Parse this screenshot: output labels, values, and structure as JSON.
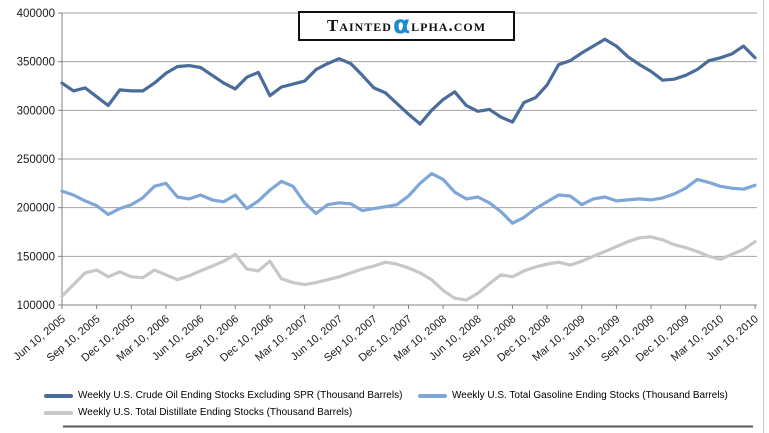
{
  "logo": {
    "prefix": "Tainted",
    "alpha": "α",
    "suffix": "lpha.com",
    "alpha_color": "#1b8cd0"
  },
  "chart_data": {
    "type": "line",
    "title": "",
    "xlabel": "",
    "ylabel": "",
    "ylim": [
      100000,
      400000
    ],
    "grid": "horizontal",
    "legend_position": "bottom",
    "y_ticks": [
      100000,
      150000,
      200000,
      250000,
      300000,
      350000,
      400000
    ],
    "y_tick_labels": [
      "100000",
      "150000",
      "200000",
      "250000",
      "300000",
      "350000",
      "400000"
    ],
    "x_tick_labels": [
      "Jun 10, 2005",
      "Sep 10, 2005",
      "Dec 10, 2005",
      "Mar 10, 2006",
      "Jun 10, 2006",
      "Sep 10, 2006",
      "Dec 10, 2006",
      "Mar 10, 2007",
      "Jun 10, 2007",
      "Sep 10, 2007",
      "Dec 10, 2007",
      "Mar 10, 2008",
      "Jun 10, 2008",
      "Sep 10, 2008",
      "Dec 10, 2008",
      "Mar 10, 2009",
      "Jun 10, 2009",
      "Sep 10, 2009",
      "Dec 10, 2009",
      "Mar 10, 2010",
      "Jun 10, 2010"
    ],
    "series": [
      {
        "key": "crude",
        "name": "Weekly U.S. Crude Oil Ending Stocks Excluding SPR  (Thousand Barrels)",
        "color": "#4a6c9b",
        "values": [
          328000,
          320000,
          323000,
          314000,
          305000,
          321000,
          320000,
          320000,
          328000,
          338000,
          345000,
          346000,
          344000,
          336000,
          328000,
          322000,
          334000,
          339000,
          315000,
          324000,
          327000,
          330000,
          342000,
          348000,
          353000,
          348000,
          336000,
          323000,
          318000,
          307000,
          296000,
          286000,
          300000,
          311000,
          319000,
          305000,
          299000,
          301000,
          293000,
          288000,
          308000,
          313000,
          326000,
          347000,
          351000,
          359000,
          366000,
          373000,
          366000,
          355000,
          347000,
          340000,
          331000,
          332000,
          336000,
          342000,
          351000,
          354000,
          358000,
          366000,
          354000
        ]
      },
      {
        "key": "gasoline",
        "name": "Weekly U.S. Total Gasoline Ending Stocks  (Thousand Barrels)",
        "color": "#7ea6d8",
        "values": [
          217000,
          213000,
          207000,
          202000,
          193000,
          199000,
          203000,
          210000,
          222000,
          225000,
          211000,
          209000,
          213000,
          208000,
          206000,
          213000,
          199000,
          207000,
          218000,
          227000,
          222000,
          205000,
          194000,
          203000,
          205000,
          204000,
          197000,
          199000,
          201000,
          203000,
          212000,
          225000,
          235000,
          229000,
          216000,
          209000,
          211000,
          205000,
          196000,
          184000,
          190000,
          199000,
          206000,
          213000,
          212000,
          203000,
          209000,
          211000,
          207000,
          208000,
          209000,
          208000,
          210000,
          214000,
          220000,
          229000,
          226000,
          222000,
          220000,
          219000,
          223000
        ]
      },
      {
        "key": "distillate",
        "name": "Weekly U.S. Total Distillate Ending Stocks  (Thousand Barrels)",
        "color": "#c7c7c7",
        "values": [
          109000,
          121000,
          133000,
          136000,
          129000,
          134000,
          129000,
          128000,
          136000,
          131000,
          126000,
          130000,
          135000,
          140000,
          145000,
          152000,
          137000,
          135000,
          145000,
          127000,
          123000,
          121000,
          123000,
          126000,
          129000,
          133000,
          137000,
          140000,
          144000,
          142000,
          138000,
          133000,
          126000,
          115000,
          107000,
          105000,
          112000,
          122000,
          131000,
          129000,
          135000,
          139000,
          142000,
          144000,
          141000,
          145000,
          150000,
          155000,
          160000,
          165000,
          169000,
          170000,
          167000,
          162000,
          159000,
          155000,
          150000,
          147000,
          152000,
          157000,
          165000
        ]
      }
    ]
  },
  "frame": {
    "gridline_color": "#a3a3a3",
    "axis_color": "#808080",
    "right_border_color": "#c5c8c2",
    "bottom_rule_color": "#575757"
  }
}
